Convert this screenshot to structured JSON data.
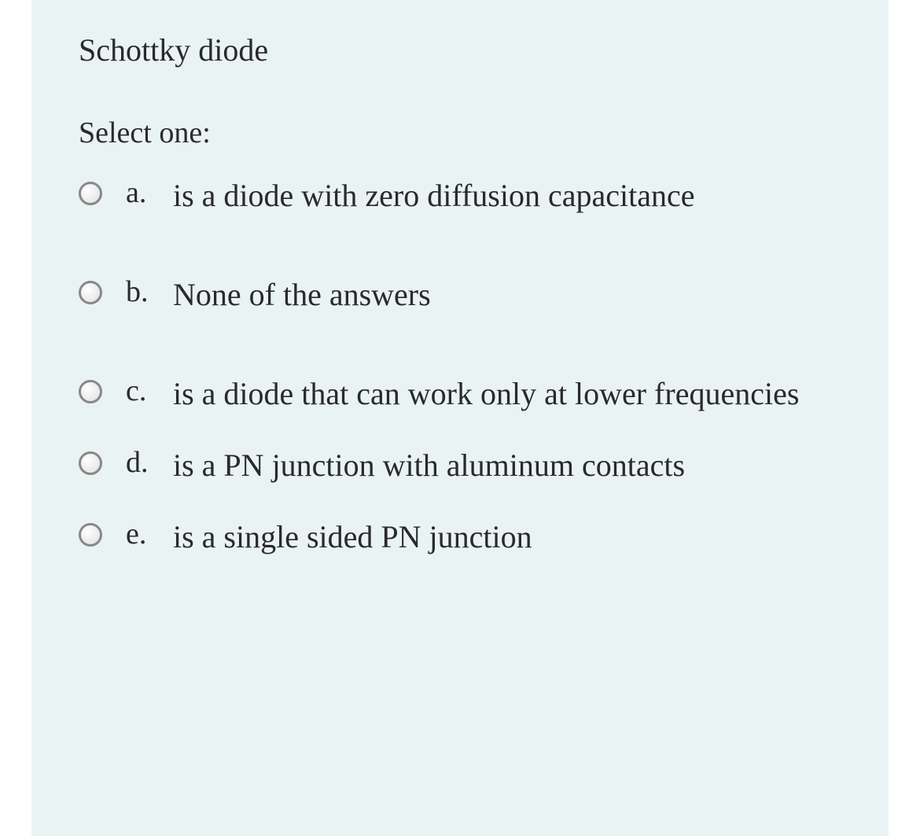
{
  "question": {
    "title": "Schottky diode",
    "prompt": "Select one:",
    "options": [
      {
        "letter": "a.",
        "text": "is a diode with zero diffusion capacitance"
      },
      {
        "letter": "b.",
        "text": "None of the answers"
      },
      {
        "letter": "c.",
        "text": "is a diode that can work only at lower frequencies"
      },
      {
        "letter": "d.",
        "text": "is a PN junction with aluminum contacts"
      },
      {
        "letter": "e.",
        "text": "is a single sided PN junction"
      }
    ]
  },
  "style": {
    "background_color": "#eaf3f3",
    "text_color": "#2a2a2a",
    "radio_border_color": "#888888",
    "title_fontsize": 40,
    "prompt_fontsize": 38,
    "option_fontsize": 40,
    "font_family": "Georgia, serif"
  }
}
